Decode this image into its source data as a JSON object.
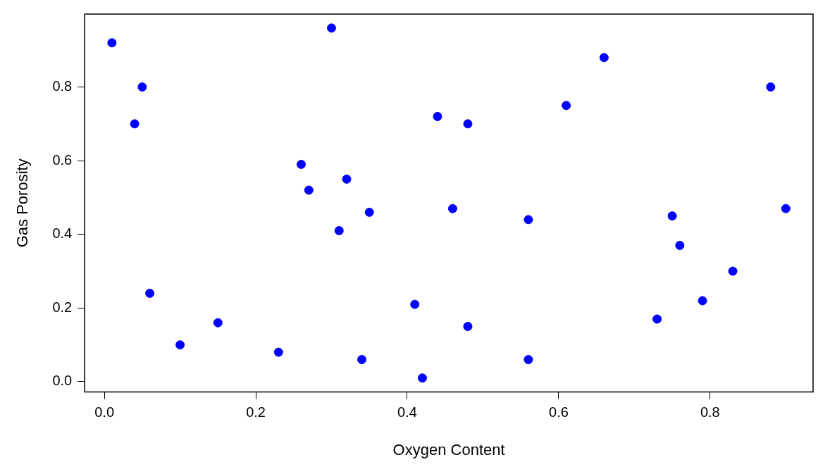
{
  "chart_data": {
    "type": "scatter",
    "xlabel": "Oxygen Content",
    "ylabel": "Gas Porosity",
    "x": [
      0.01,
      0.04,
      0.05,
      0.06,
      0.1,
      0.15,
      0.23,
      0.26,
      0.27,
      0.3,
      0.31,
      0.32,
      0.34,
      0.35,
      0.41,
      0.42,
      0.44,
      0.46,
      0.48,
      0.48,
      0.56,
      0.56,
      0.61,
      0.66,
      0.73,
      0.75,
      0.76,
      0.79,
      0.83,
      0.88,
      0.9
    ],
    "series": [
      {
        "color": "#0000ff",
        "values": [
          0.92,
          0.7,
          0.8,
          0.24,
          0.1,
          0.16,
          0.08,
          0.59,
          0.52,
          0.96,
          0.41,
          0.55,
          0.06,
          0.46,
          0.21,
          0.01,
          0.72,
          0.47,
          0.7,
          0.15,
          0.44,
          0.06,
          0.75,
          0.88,
          0.17,
          0.45,
          0.37,
          0.22,
          0.3,
          0.8,
          0.47
        ]
      }
    ],
    "xlim": [
      -0.026,
      0.936
    ],
    "ylim": [
      -0.028,
      0.998
    ],
    "xticks": [
      {
        "value": 0,
        "label": "0.0"
      },
      0.2,
      0.4,
      0.6,
      0.8
    ],
    "yticks": [
      {
        "value": 0,
        "label": "0.0"
      },
      0.2,
      0.4,
      0.6,
      0.8
    ],
    "grid": false,
    "legend": false,
    "marker": "circle"
  }
}
